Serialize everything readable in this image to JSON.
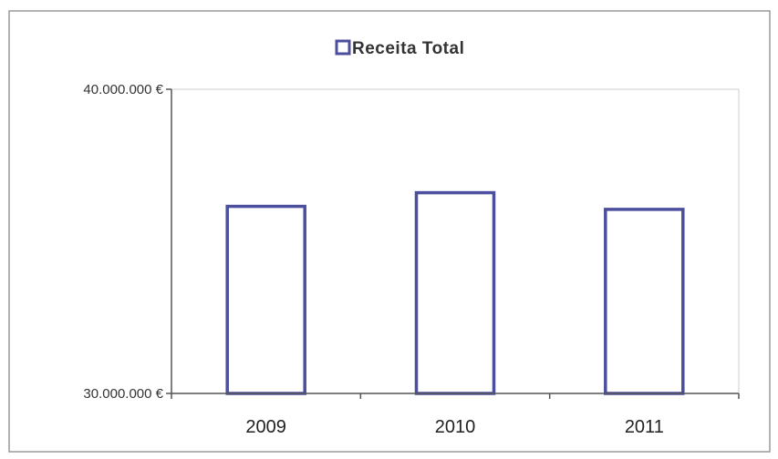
{
  "chart_data": {
    "type": "bar",
    "legend": {
      "label": "Receita Total",
      "placement": "top"
    },
    "categories": [
      "2009",
      "2010",
      "2011"
    ],
    "series": [
      {
        "name": "Receita Total",
        "values": [
          36150000,
          36600000,
          36050000
        ]
      }
    ],
    "ylim": [
      30000000,
      40000000
    ],
    "y_ticks": [
      {
        "value": 30000000,
        "label": "30.000.000 €"
      },
      {
        "value": 40000000,
        "label": "40.000.000 €"
      }
    ],
    "grid": false,
    "colors": {
      "bar_stroke": "#4b4f9e",
      "bar_fill": "#ffffff",
      "axis": "#555555"
    }
  }
}
